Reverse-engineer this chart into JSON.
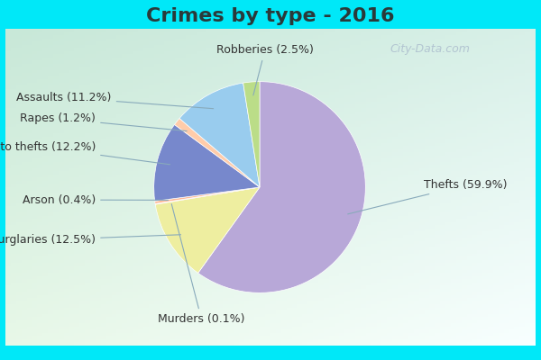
{
  "title": "Crimes by type - 2016",
  "labels": [
    "Thefts",
    "Burglaries",
    "Murders",
    "Arson",
    "Auto thefts",
    "Rapes",
    "Assaults",
    "Robberies"
  ],
  "values": [
    59.9,
    12.5,
    0.1,
    0.4,
    12.2,
    1.2,
    11.2,
    2.5
  ],
  "colors": [
    "#b8a8d8",
    "#eeeea0",
    "#ffaaaa",
    "#ffbb99",
    "#7788cc",
    "#ffccaa",
    "#99ccee",
    "#bbdd88"
  ],
  "bg_cyan": "#00e8f8",
  "bg_top_left": "#c8e8d8",
  "bg_bottom_right": "#e8f0f8",
  "title_fontsize": 16,
  "label_fontsize": 9,
  "startangle": 90,
  "watermark": "City-Data.com"
}
